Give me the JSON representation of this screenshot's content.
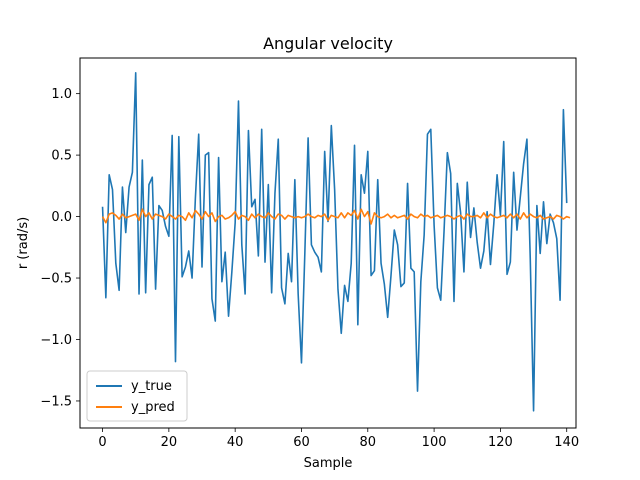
{
  "chart_data": {
    "type": "line",
    "title": "Angular velocity",
    "xlabel": "Sample",
    "ylabel": "r (rad/s)",
    "xlim": [
      -6.8,
      142.8
    ],
    "ylim": [
      -1.72,
      1.29
    ],
    "xticks": [
      0,
      20,
      40,
      60,
      80,
      100,
      120,
      140
    ],
    "xtick_labels": [
      "0",
      "20",
      "40",
      "60",
      "80",
      "100",
      "120",
      "140"
    ],
    "yticks": [
      -1.5,
      -1.0,
      -0.5,
      0.0,
      0.5,
      1.0
    ],
    "ytick_labels": [
      "−1.5",
      "−1.0",
      "−0.5",
      "0.0",
      "0.5",
      "1.0"
    ],
    "grid": false,
    "legend_position": "lower-left",
    "series": [
      {
        "name": "y_true",
        "color": "#1f77b4",
        "values": [
          0.08,
          -0.66,
          0.34,
          0.22,
          -0.38,
          -0.6,
          0.24,
          -0.13,
          0.24,
          0.36,
          1.17,
          -0.63,
          0.46,
          -0.62,
          0.26,
          0.32,
          -0.59,
          0.09,
          0.05,
          -0.08,
          -0.16,
          0.66,
          -1.18,
          0.65,
          -0.49,
          -0.41,
          -0.28,
          -0.5,
          0.15,
          0.67,
          -0.41,
          0.5,
          0.52,
          -0.67,
          -0.85,
          0.48,
          -0.53,
          -0.29,
          -0.81,
          -0.45,
          -0.05,
          0.94,
          -0.23,
          -0.63,
          0.7,
          0.08,
          0.14,
          -0.32,
          0.71,
          -0.37,
          0.26,
          -0.62,
          0.19,
          0.63,
          -0.58,
          -0.71,
          -0.3,
          -0.53,
          0.3,
          -0.63,
          -1.19,
          -0.31,
          0.64,
          -0.23,
          -0.29,
          -0.33,
          -0.45,
          0.53,
          -0.04,
          0.74,
          0.22,
          -0.59,
          -0.95,
          -0.56,
          -0.69,
          -0.38,
          0.58,
          -0.88,
          0.34,
          0.19,
          0.53,
          -0.48,
          -0.44,
          0.3,
          -0.38,
          -0.55,
          -0.82,
          -0.48,
          -0.11,
          -0.23,
          -0.57,
          -0.54,
          0.27,
          -0.42,
          -0.45,
          -1.42,
          -0.53,
          -0.15,
          0.67,
          0.71,
          -0.07,
          -0.58,
          -0.68,
          -0.12,
          0.52,
          0.35,
          -0.69,
          0.27,
          0.03,
          -0.45,
          0.28,
          -0.17,
          0.07,
          -0.21,
          -0.42,
          -0.28,
          0.04,
          -0.39,
          -0.06,
          0.34,
          0.01,
          0.61,
          -0.47,
          -0.37,
          0.36,
          -0.11,
          0.16,
          0.43,
          0.63,
          -0.34,
          -1.58,
          0.09,
          -0.3,
          0.12,
          -0.22,
          0.02,
          -0.05,
          -0.18,
          -0.68,
          0.87,
          0.11
        ]
      },
      {
        "name": "y_pred",
        "color": "#ff7f0e",
        "values": [
          0.0,
          -0.05,
          0.02,
          0.03,
          0.01,
          -0.02,
          0.02,
          -0.01,
          0.0,
          0.01,
          0.02,
          -0.03,
          0.06,
          0.0,
          0.03,
          -0.02,
          0.02,
          0.01,
          0.0,
          -0.02,
          0.02,
          0.0,
          -0.02,
          0.01,
          0.0,
          -0.03,
          0.03,
          -0.01,
          0.05,
          0.02,
          -0.02,
          0.04,
          0.0,
          0.03,
          -0.04,
          0.0,
          0.01,
          -0.02,
          -0.01,
          0.01,
          0.04,
          -0.02,
          0.01,
          0.0,
          -0.03,
          0.02,
          -0.01,
          0.02,
          0.0,
          -0.01,
          0.03,
          0.0,
          -0.02,
          0.02,
          0.01,
          -0.02,
          0.01,
          0.0,
          -0.01,
          0.0,
          -0.01,
          0.0,
          0.02,
          0.0,
          -0.01,
          0.01,
          0.0,
          0.02,
          -0.03,
          0.01,
          0.0,
          -0.01,
          0.03,
          -0.01,
          0.03,
          0.01,
          0.05,
          -0.02,
          0.06,
          0.0,
          0.04,
          -0.06,
          0.03,
          0.0,
          -0.01,
          0.0,
          0.02,
          -0.01,
          0.01,
          -0.01,
          0.0,
          0.01,
          -0.02,
          0.02,
          0.0,
          -0.01,
          0.02,
          0.0,
          0.01,
          -0.01,
          0.0,
          0.01,
          -0.01,
          0.0,
          0.01,
          0.0,
          -0.02,
          0.0,
          0.01,
          -0.02,
          0.02,
          0.0,
          0.0,
          0.01,
          -0.01,
          0.03,
          -0.01,
          0.02,
          0.0,
          -0.01,
          0.0,
          0.01,
          -0.01,
          0.02,
          -0.01,
          0.02,
          -0.02,
          0.03,
          -0.01,
          0.02,
          0.0,
          -0.01,
          0.01,
          -0.02,
          -0.01,
          0.0,
          -0.02,
          0.01,
          0.0,
          -0.02,
          0.0,
          -0.01
        ]
      }
    ]
  }
}
